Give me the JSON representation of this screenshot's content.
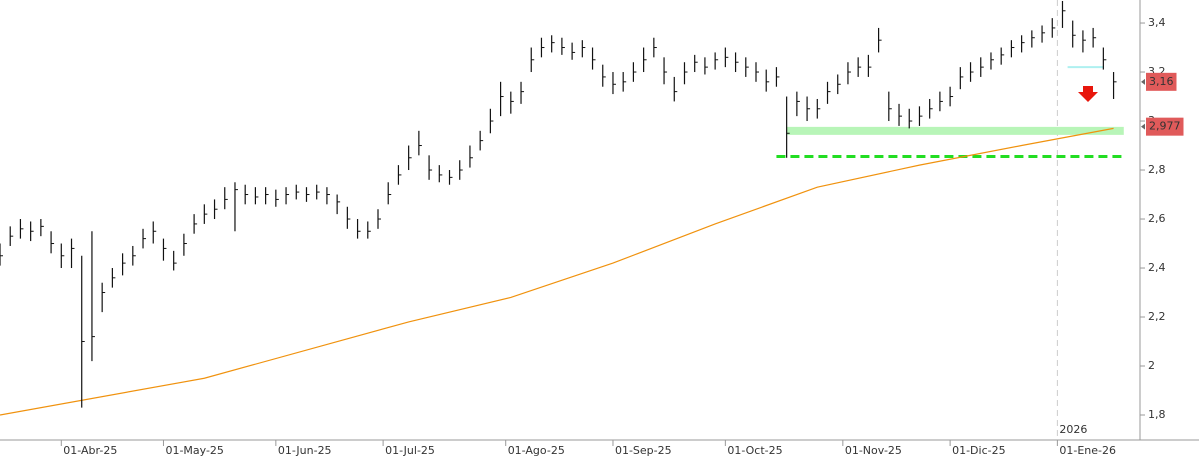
{
  "chart_data": {
    "type": "ohlc",
    "color": "#111111",
    "x": [
      0,
      2,
      4,
      6,
      8,
      10,
      12,
      14,
      16,
      18,
      20,
      22,
      24,
      26,
      28,
      30,
      32,
      34,
      36,
      38,
      40,
      42,
      44,
      46,
      48,
      50,
      52,
      54,
      56,
      58,
      60,
      62,
      64,
      66,
      68,
      70,
      72,
      74,
      76,
      78,
      80,
      82,
      84,
      86,
      88,
      90,
      92,
      94,
      96,
      98,
      100,
      102,
      104,
      106,
      108,
      110,
      112,
      114,
      116,
      118,
      120,
      122,
      124,
      126,
      128,
      130,
      132,
      134,
      136,
      138,
      140,
      142,
      144,
      146,
      148,
      150,
      152,
      154,
      156,
      158,
      160,
      162,
      164,
      166,
      168,
      170,
      172,
      174,
      176,
      178,
      180,
      182,
      184,
      186,
      188,
      190,
      192,
      194,
      196,
      198,
      200,
      202,
      204,
      206,
      208,
      210,
      212,
      214,
      216,
      218
    ],
    "high": [
      2.5,
      2.57,
      2.6,
      2.59,
      2.6,
      2.55,
      2.5,
      2.52,
      2.45,
      2.55,
      2.34,
      2.4,
      2.46,
      2.49,
      2.56,
      2.59,
      2.52,
      2.47,
      2.54,
      2.62,
      2.66,
      2.68,
      2.73,
      2.75,
      2.74,
      2.73,
      2.73,
      2.72,
      2.73,
      2.74,
      2.73,
      2.74,
      2.73,
      2.7,
      2.65,
      2.6,
      2.59,
      2.64,
      2.75,
      2.82,
      2.9,
      2.96,
      2.86,
      2.82,
      2.8,
      2.84,
      2.9,
      2.96,
      3.05,
      3.16,
      3.12,
      3.16,
      3.3,
      3.34,
      3.35,
      3.34,
      3.32,
      3.33,
      3.3,
      3.23,
      3.2,
      3.2,
      3.24,
      3.3,
      3.34,
      3.26,
      3.18,
      3.24,
      3.27,
      3.26,
      3.28,
      3.3,
      3.28,
      3.26,
      3.24,
      3.21,
      3.22,
      3.1,
      3.12,
      3.1,
      3.09,
      3.16,
      3.19,
      3.24,
      3.26,
      3.27,
      3.38,
      3.12,
      3.07,
      3.05,
      3.06,
      3.09,
      3.12,
      3.14,
      3.22,
      3.24,
      3.26,
      3.28,
      3.3,
      3.33,
      3.35,
      3.37,
      3.39,
      3.42,
      3.49,
      3.41,
      3.37,
      3.38,
      3.3,
      3.2
    ],
    "low": [
      2.41,
      2.49,
      2.52,
      2.51,
      2.53,
      2.46,
      2.4,
      2.4,
      1.83,
      2.02,
      2.22,
      2.32,
      2.37,
      2.41,
      2.48,
      2.5,
      2.43,
      2.39,
      2.45,
      2.54,
      2.58,
      2.6,
      2.64,
      2.55,
      2.66,
      2.66,
      2.66,
      2.65,
      2.66,
      2.68,
      2.67,
      2.68,
      2.66,
      2.62,
      2.56,
      2.52,
      2.52,
      2.56,
      2.66,
      2.74,
      2.8,
      2.86,
      2.76,
      2.75,
      2.74,
      2.76,
      2.81,
      2.88,
      2.95,
      3.02,
      3.03,
      3.07,
      3.2,
      3.26,
      3.28,
      3.27,
      3.25,
      3.26,
      3.21,
      3.14,
      3.11,
      3.12,
      3.16,
      3.2,
      3.26,
      3.15,
      3.08,
      3.15,
      3.2,
      3.19,
      3.21,
      3.22,
      3.2,
      3.18,
      3.16,
      3.12,
      3.14,
      2.85,
      3.02,
      3.0,
      3.01,
      3.07,
      3.11,
      3.15,
      3.18,
      3.18,
      3.28,
      3.0,
      2.98,
      2.97,
      2.98,
      3.01,
      3.04,
      3.06,
      3.13,
      3.16,
      3.18,
      3.21,
      3.23,
      3.26,
      3.28,
      3.3,
      3.32,
      3.34,
      3.38,
      3.3,
      3.28,
      3.3,
      3.21,
      3.09
    ],
    "close": [
      2.45,
      2.53,
      2.56,
      2.55,
      2.57,
      2.5,
      2.45,
      2.48,
      2.1,
      2.12,
      2.3,
      2.36,
      2.42,
      2.45,
      2.52,
      2.55,
      2.48,
      2.42,
      2.5,
      2.58,
      2.62,
      2.64,
      2.68,
      2.72,
      2.7,
      2.69,
      2.7,
      2.68,
      2.7,
      2.71,
      2.7,
      2.71,
      2.7,
      2.67,
      2.6,
      2.55,
      2.55,
      2.6,
      2.7,
      2.78,
      2.85,
      2.9,
      2.8,
      2.78,
      2.77,
      2.8,
      2.85,
      2.92,
      3.0,
      3.1,
      3.08,
      3.12,
      3.25,
      3.3,
      3.32,
      3.3,
      3.28,
      3.3,
      3.25,
      3.18,
      3.15,
      3.16,
      3.2,
      3.25,
      3.3,
      3.2,
      3.12,
      3.2,
      3.24,
      3.22,
      3.25,
      3.26,
      3.24,
      3.22,
      3.2,
      3.16,
      3.18,
      2.95,
      3.08,
      3.05,
      3.05,
      3.12,
      3.15,
      3.2,
      3.22,
      3.22,
      3.33,
      3.05,
      3.02,
      3.0,
      3.02,
      3.05,
      3.08,
      3.1,
      3.18,
      3.2,
      3.22,
      3.25,
      3.27,
      3.3,
      3.32,
      3.34,
      3.36,
      3.38,
      3.45,
      3.35,
      3.33,
      3.34,
      3.25,
      3.16
    ],
    "ma": {
      "color": "#f0920e",
      "x": [
        0,
        40,
        80,
        100,
        120,
        140,
        160,
        180,
        200,
        218
      ],
      "values": [
        1.8,
        1.95,
        2.18,
        2.28,
        2.42,
        2.58,
        2.73,
        2.82,
        2.9,
        2.97
      ]
    },
    "xlim": [
      0,
      222
    ],
    "ylim": [
      1.698,
      3.494
    ],
    "yticks": [
      {
        "value": 1.8,
        "label": "1,8"
      },
      2,
      {
        "value": 2.2,
        "label": "2,2"
      },
      {
        "value": 2.4,
        "label": "2,4"
      },
      {
        "value": 2.6,
        "label": "2,6"
      },
      {
        "value": 2.8,
        "label": "2,8"
      },
      3,
      {
        "value": 3.2,
        "label": "3,2"
      },
      {
        "value": 3.4,
        "label": "3,4"
      }
    ],
    "xticks": [
      {
        "value": 12,
        "label": "01-Abr-25"
      },
      {
        "value": 32,
        "label": "01-May-25"
      },
      {
        "value": 54,
        "label": "01-Jun-25"
      },
      {
        "value": 75,
        "label": "01-Jul-25"
      },
      {
        "value": 99,
        "label": "01-Ago-25"
      },
      {
        "value": 120,
        "label": "01-Sep-25"
      },
      {
        "value": 142,
        "label": "01-Oct-25"
      },
      {
        "value": 165,
        "label": "01-Nov-25"
      },
      {
        "value": 186,
        "label": "01-Dic-25"
      },
      {
        "value": 207,
        "label": "01-Ene-26"
      }
    ],
    "year_marker": {
      "value": 207,
      "label": "2026"
    },
    "price_labels": [
      {
        "value": 3.16,
        "label": "3,16",
        "color": "#e05a5a"
      },
      {
        "value": 2.977,
        "label": "2,977",
        "color": "#e05a5a"
      }
    ],
    "levels": [
      {
        "value": 2.855,
        "from": 152,
        "to": 220,
        "color": "#22dd22",
        "style": "dashed"
      },
      {
        "value": 2.96,
        "from": 154,
        "to": 220,
        "color": "#b8f5b8",
        "style": "band"
      },
      {
        "value": 3.22,
        "from": 209,
        "to": 216,
        "color": "#aef0f0",
        "style": "solid"
      }
    ]
  }
}
